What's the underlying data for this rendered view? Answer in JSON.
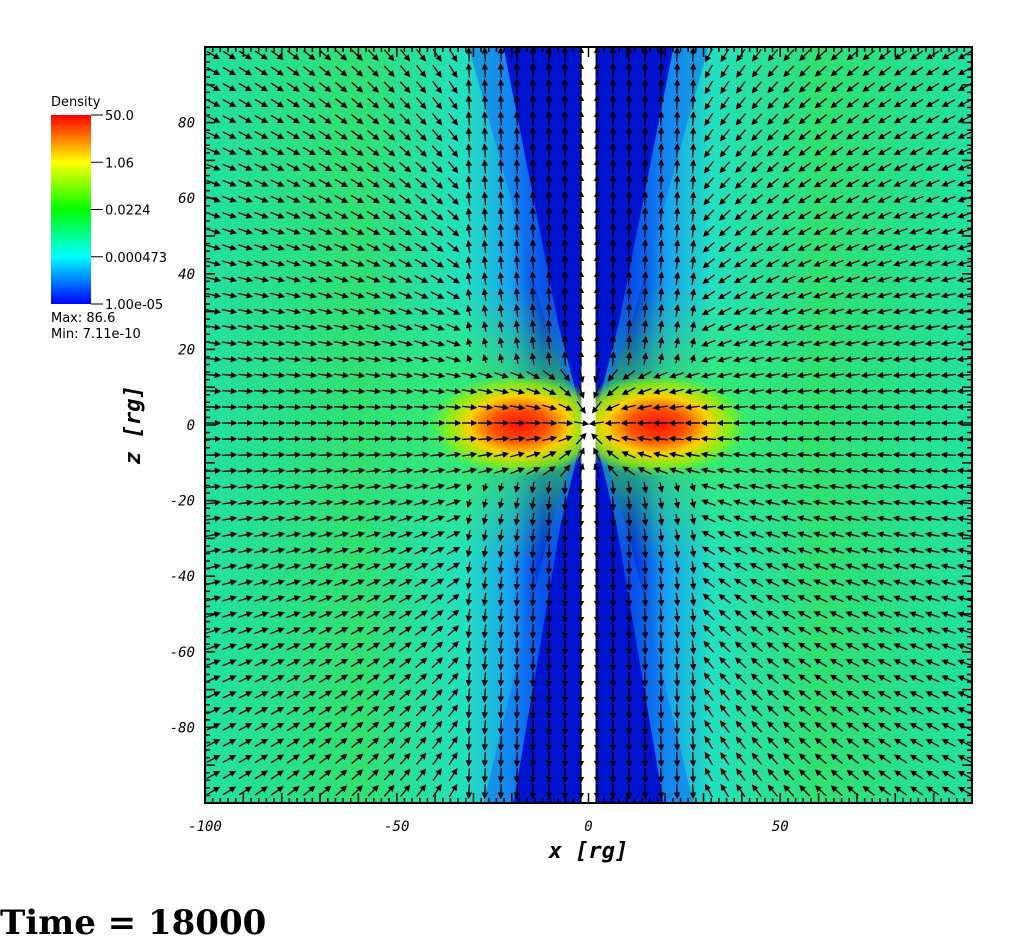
{
  "chart_data": {
    "type": "heatmap",
    "title": "",
    "xlabel": "x [rg]",
    "ylabel": "z [rg]",
    "xlim": [
      -100,
      100
    ],
    "ylim": [
      -100,
      100
    ],
    "x_ticks": [
      -100,
      -50,
      0,
      50
    ],
    "y_ticks": [
      80,
      60,
      40,
      20,
      0,
      -20,
      -40,
      -60,
      -80
    ],
    "x_tick_labels": [
      "-100",
      "-50",
      "0",
      "50"
    ],
    "y_tick_labels": [
      "80",
      "60",
      "40",
      "20",
      "0",
      "-20",
      "-40",
      "-60",
      "-80"
    ],
    "grid": false,
    "colorbar": {
      "title": "Density",
      "scale": "log",
      "range": [
        1e-05,
        50.0
      ],
      "tick_labels": [
        "50.0",
        "1.06",
        "0.0224",
        "0.000473",
        "1.00e-05"
      ],
      "max_label": "Max:  86.6",
      "min_label": "Min:  7.11e-10",
      "colors": [
        "#0000ff",
        "#00ffff",
        "#00ff00",
        "#ffff00",
        "#ff0000"
      ],
      "position": "top-left"
    },
    "overlay": "velocity vector field (black arrows)",
    "features": {
      "disk_density_peak_x": [
        -18,
        18
      ],
      "disk_density_peak_z": 0,
      "polar_funnel_halfwidth_at_z80": 25
    }
  },
  "footer": {
    "time_label": "Time = 18000"
  }
}
